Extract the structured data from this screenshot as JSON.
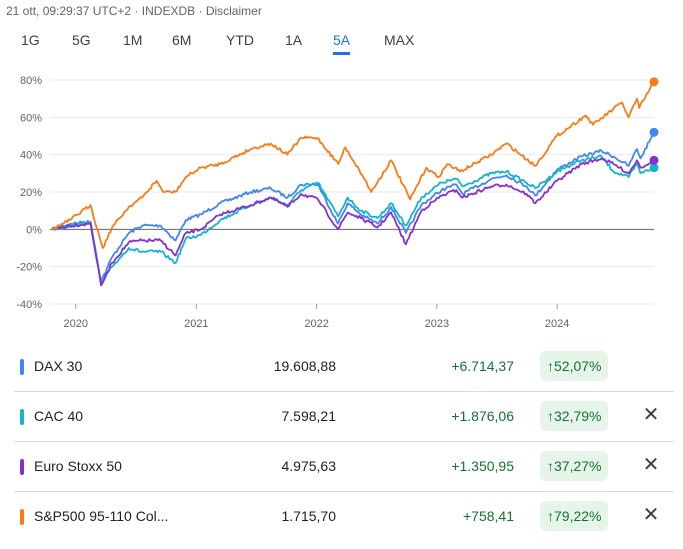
{
  "header": {
    "timestamp": "21 ott, 09:29:37 UTC+2",
    "source": "INDEXDB",
    "disclaimer": "Disclaimer"
  },
  "tabs": [
    {
      "label": "1G",
      "active": false
    },
    {
      "label": "5G",
      "active": false
    },
    {
      "label": "1M",
      "active": false
    },
    {
      "label": "6M",
      "active": false
    },
    {
      "label": "YTD",
      "active": false
    },
    {
      "label": "1A",
      "active": false
    },
    {
      "label": "5A",
      "active": true
    },
    {
      "label": "MAX",
      "active": false
    }
  ],
  "chart_data": {
    "type": "line",
    "x_range": [
      "2019-10-21",
      "2024-10-21"
    ],
    "ylim": [
      -40,
      80
    ],
    "y_ticks": [
      -40,
      -20,
      0,
      20,
      40,
      60,
      80
    ],
    "y_tick_labels": [
      "-40%",
      "-20%",
      "0%",
      "20%",
      "40%",
      "60%",
      "80%"
    ],
    "x_tick_labels": [
      "2020",
      "2021",
      "2022",
      "2023",
      "2024"
    ],
    "x_ticks": [
      "2020-01-01",
      "2021-01-01",
      "2022-01-01",
      "2023-01-01",
      "2024-01-01"
    ],
    "grid": "horizontal",
    "series": [
      {
        "name": "DAX 30",
        "color": "#4285f4",
        "points": [
          [
            "2019-10-21",
            0
          ],
          [
            "2019-12-15",
            3
          ],
          [
            "2020-02-15",
            4
          ],
          [
            "2020-03-18",
            -28
          ],
          [
            "2020-04-20",
            -15
          ],
          [
            "2020-06-10",
            -2
          ],
          [
            "2020-07-20",
            2
          ],
          [
            "2020-09-15",
            2
          ],
          [
            "2020-10-30",
            -6
          ],
          [
            "2020-11-30",
            5
          ],
          [
            "2021-01-15",
            8
          ],
          [
            "2021-03-15",
            14
          ],
          [
            "2021-06-15",
            20
          ],
          [
            "2021-08-15",
            22
          ],
          [
            "2021-10-05",
            17
          ],
          [
            "2021-11-15",
            24
          ],
          [
            "2022-01-05",
            24
          ],
          [
            "2022-03-07",
            3
          ],
          [
            "2022-04-05",
            14
          ],
          [
            "2022-05-15",
            8
          ],
          [
            "2022-07-05",
            3
          ],
          [
            "2022-08-15",
            12
          ],
          [
            "2022-09-29",
            -2
          ],
          [
            "2022-11-15",
            13
          ],
          [
            "2023-01-15",
            21
          ],
          [
            "2023-03-01",
            24
          ],
          [
            "2023-03-20",
            19
          ],
          [
            "2023-06-15",
            27
          ],
          [
            "2023-07-31",
            29
          ],
          [
            "2023-09-30",
            23
          ],
          [
            "2023-10-27",
            18
          ],
          [
            "2024-01-01",
            32
          ],
          [
            "2024-03-15",
            39
          ],
          [
            "2024-05-15",
            42
          ],
          [
            "2024-06-20",
            39
          ],
          [
            "2024-08-05",
            34
          ],
          [
            "2024-08-30",
            43
          ],
          [
            "2024-09-10",
            38
          ],
          [
            "2024-10-21",
            52
          ]
        ]
      },
      {
        "name": "CAC 40",
        "color": "#12b5cb",
        "points": [
          [
            "2019-10-21",
            0
          ],
          [
            "2019-12-15",
            2
          ],
          [
            "2020-02-15",
            4
          ],
          [
            "2020-03-18",
            -30
          ],
          [
            "2020-04-20",
            -20
          ],
          [
            "2020-06-10",
            -10
          ],
          [
            "2020-07-20",
            -12
          ],
          [
            "2020-09-15",
            -12
          ],
          [
            "2020-10-30",
            -18
          ],
          [
            "2020-11-30",
            -5
          ],
          [
            "2021-01-15",
            -3
          ],
          [
            "2021-03-15",
            5
          ],
          [
            "2021-06-15",
            13
          ],
          [
            "2021-08-15",
            17
          ],
          [
            "2021-10-05",
            13
          ],
          [
            "2021-11-15",
            21
          ],
          [
            "2022-01-05",
            25
          ],
          [
            "2022-03-07",
            7
          ],
          [
            "2022-04-05",
            17
          ],
          [
            "2022-05-15",
            10
          ],
          [
            "2022-07-05",
            6
          ],
          [
            "2022-08-15",
            14
          ],
          [
            "2022-09-29",
            2
          ],
          [
            "2022-11-15",
            17
          ],
          [
            "2023-01-15",
            25
          ],
          [
            "2023-03-01",
            27
          ],
          [
            "2023-03-20",
            23
          ],
          [
            "2023-06-15",
            30
          ],
          [
            "2023-07-31",
            31
          ],
          [
            "2023-09-30",
            25
          ],
          [
            "2023-10-27",
            22
          ],
          [
            "2024-01-01",
            31
          ],
          [
            "2024-03-15",
            37
          ],
          [
            "2024-05-15",
            39
          ],
          [
            "2024-06-20",
            31
          ],
          [
            "2024-08-05",
            28
          ],
          [
            "2024-08-30",
            35
          ],
          [
            "2024-09-10",
            30
          ],
          [
            "2024-10-21",
            33
          ]
        ]
      },
      {
        "name": "Euro Stoxx 50",
        "color": "#8430ce",
        "points": [
          [
            "2019-10-21",
            0
          ],
          [
            "2019-12-15",
            2
          ],
          [
            "2020-02-15",
            3
          ],
          [
            "2020-03-18",
            -30
          ],
          [
            "2020-04-20",
            -18
          ],
          [
            "2020-06-10",
            -7
          ],
          [
            "2020-07-20",
            -6
          ],
          [
            "2020-09-15",
            -6
          ],
          [
            "2020-10-30",
            -14
          ],
          [
            "2020-11-30",
            -2
          ],
          [
            "2021-01-15",
            0
          ],
          [
            "2021-03-15",
            8
          ],
          [
            "2021-06-15",
            13
          ],
          [
            "2021-08-15",
            17
          ],
          [
            "2021-10-05",
            12
          ],
          [
            "2021-11-15",
            19
          ],
          [
            "2022-01-05",
            16
          ],
          [
            "2022-03-07",
            0
          ],
          [
            "2022-04-05",
            9
          ],
          [
            "2022-05-15",
            6
          ],
          [
            "2022-07-05",
            1
          ],
          [
            "2022-08-15",
            9
          ],
          [
            "2022-09-29",
            -8
          ],
          [
            "2022-11-15",
            10
          ],
          [
            "2023-01-15",
            18
          ],
          [
            "2023-03-01",
            21
          ],
          [
            "2023-03-20",
            17
          ],
          [
            "2023-06-15",
            23
          ],
          [
            "2023-07-31",
            24
          ],
          [
            "2023-09-30",
            19
          ],
          [
            "2023-10-27",
            14
          ],
          [
            "2024-01-01",
            26
          ],
          [
            "2024-03-15",
            35
          ],
          [
            "2024-05-15",
            38
          ],
          [
            "2024-06-20",
            35
          ],
          [
            "2024-08-05",
            30
          ],
          [
            "2024-08-30",
            37
          ],
          [
            "2024-09-10",
            33
          ],
          [
            "2024-10-21",
            37
          ]
        ]
      },
      {
        "name": "S&P500 95-110 Col...",
        "color": "#fa7b17",
        "points": [
          [
            "2019-10-21",
            0
          ],
          [
            "2019-12-15",
            5
          ],
          [
            "2020-02-15",
            13
          ],
          [
            "2020-03-23",
            -10
          ],
          [
            "2020-04-20",
            1
          ],
          [
            "2020-06-10",
            12
          ],
          [
            "2020-07-20",
            17
          ],
          [
            "2020-09-02",
            26
          ],
          [
            "2020-09-23",
            20
          ],
          [
            "2020-10-30",
            20
          ],
          [
            "2020-11-30",
            28
          ],
          [
            "2021-01-15",
            33
          ],
          [
            "2021-03-15",
            35
          ],
          [
            "2021-06-15",
            43
          ],
          [
            "2021-08-15",
            46
          ],
          [
            "2021-10-04",
            40
          ],
          [
            "2021-11-15",
            49
          ],
          [
            "2022-01-03",
            49
          ],
          [
            "2022-03-08",
            35
          ],
          [
            "2022-03-29",
            44
          ],
          [
            "2022-05-20",
            29
          ],
          [
            "2022-06-16",
            20
          ],
          [
            "2022-08-15",
            37
          ],
          [
            "2022-10-12",
            16
          ],
          [
            "2022-11-30",
            33
          ],
          [
            "2023-01-05",
            28
          ],
          [
            "2023-02-02",
            35
          ],
          [
            "2023-03-13",
            31
          ],
          [
            "2023-06-15",
            40
          ],
          [
            "2023-07-31",
            46
          ],
          [
            "2023-10-27",
            34
          ],
          [
            "2023-12-31",
            50
          ],
          [
            "2024-03-28",
            61
          ],
          [
            "2024-04-19",
            56
          ],
          [
            "2024-07-16",
            68
          ],
          [
            "2024-08-05",
            60
          ],
          [
            "2024-08-30",
            70
          ],
          [
            "2024-09-06",
            65
          ],
          [
            "2024-10-21",
            79
          ]
        ]
      }
    ]
  },
  "rows": [
    {
      "name": "DAX 30",
      "color": "#4285f4",
      "price": "19.608,88",
      "change": "+6.714,37",
      "pct": "52,07%",
      "removable": false
    },
    {
      "name": "CAC 40",
      "color": "#12b5cb",
      "price": "7.598,21",
      "change": "+1.876,06",
      "pct": "32,79%",
      "removable": true
    },
    {
      "name": "Euro Stoxx 50",
      "color": "#8430ce",
      "price": "4.975,63",
      "change": "+1.350,95",
      "pct": "37,27%",
      "removable": true
    },
    {
      "name": "S&P500 95-110 Col...",
      "color": "#fa7b17",
      "price": "1.715,70",
      "change": "+758,41",
      "pct": "79,22%",
      "removable": true
    }
  ]
}
